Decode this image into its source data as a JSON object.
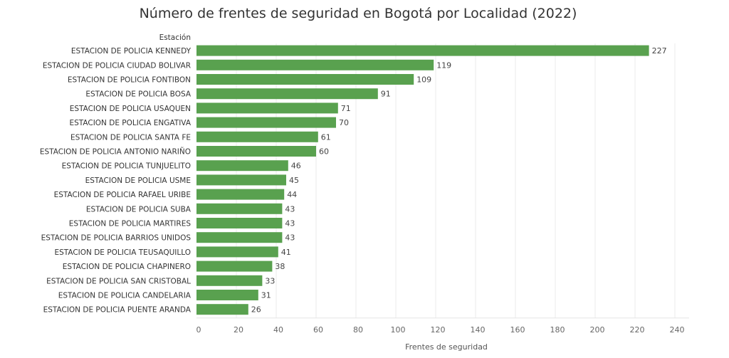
{
  "chart_data": {
    "type": "bar",
    "orientation": "horizontal",
    "title": "Número de frentes de seguridad en Bogotá por Localidad (2022)",
    "ylabel": "Estación",
    "xlabel": "Frentes de seguridad",
    "xlim": [
      0,
      240
    ],
    "xticks": [
      0,
      20,
      40,
      60,
      80,
      100,
      120,
      140,
      160,
      180,
      200,
      220,
      240
    ],
    "grid": true,
    "bar_color": "#59a14f",
    "categories": [
      "ESTACION DE POLICIA KENNEDY",
      "ESTACION DE POLICIA CIUDAD BOLIVAR",
      "ESTACION DE POLICIA FONTIBON",
      "ESTACION DE POLICIA BOSA",
      "ESTACION DE POLICIA USAQUEN",
      "ESTACION DE POLICIA ENGATIVA",
      "ESTACION DE POLICIA SANTA FE",
      "ESTACION DE POLICIA ANTONIO NARIÑO",
      "ESTACION DE POLICIA TUNJUELITO",
      "ESTACION DE POLICIA USME",
      "ESTACION DE POLICIA RAFAEL URIBE",
      "ESTACION DE POLICIA SUBA",
      "ESTACION DE POLICIA MARTIRES",
      "ESTACION DE POLICIA BARRIOS UNIDOS",
      "ESTACION DE POLICIA TEUSAQUILLO",
      "ESTACION DE POLICIA CHAPINERO",
      "ESTACION DE POLICIA SAN CRISTOBAL",
      "ESTACION DE POLICIA CANDELARIA",
      "ESTACION DE POLICIA PUENTE ARANDA"
    ],
    "values": [
      227,
      119,
      109,
      91,
      71,
      70,
      61,
      60,
      46,
      45,
      44,
      43,
      43,
      43,
      41,
      38,
      33,
      31,
      26
    ]
  }
}
